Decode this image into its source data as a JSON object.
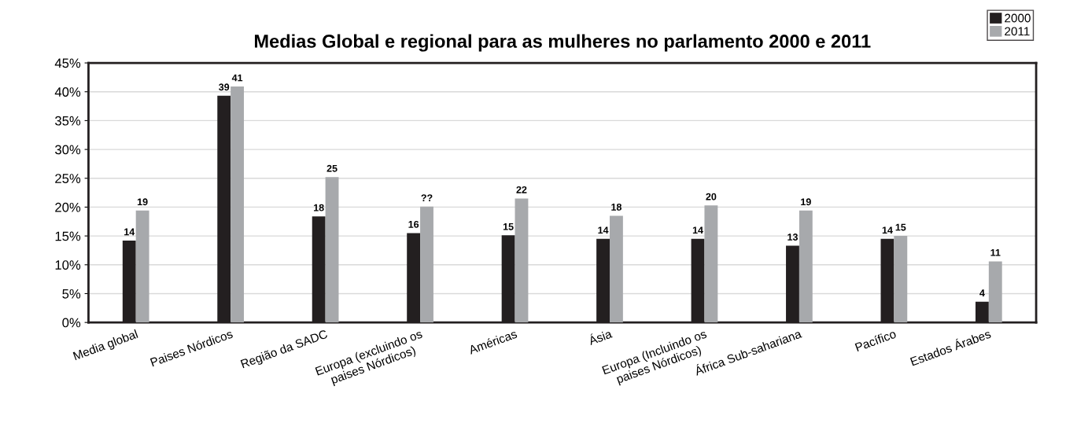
{
  "chart_data": {
    "type": "bar",
    "title": "Medias Global e regional para as mulheres no parlamento 2000 e 2011",
    "categories": [
      "Media global",
      "Paises Nórdicos",
      "Região da SADC",
      "Europa (excluindo os\npaises Nórdicos)",
      "Américas",
      "Ásia",
      "Europa (Incluindo os\npaises Nórdicos)",
      "África Sub-sahariana",
      "Pacífico",
      "Estados Árabes"
    ],
    "series": [
      {
        "name": "2000",
        "color": "#231f20",
        "values": [
          14.2,
          39.3,
          18.4,
          15.5,
          15.1,
          14.5,
          14.5,
          13.3,
          14.5,
          3.6
        ],
        "value_labels": [
          "14",
          "39",
          "18",
          "16",
          "15",
          "14",
          "14",
          "13",
          "14",
          "4"
        ]
      },
      {
        "name": "2011",
        "color": "#a7a9ac",
        "values": [
          19.4,
          40.9,
          25.2,
          20.1,
          21.5,
          18.5,
          20.3,
          19.4,
          15.0,
          10.6
        ],
        "value_labels": [
          "19",
          "41",
          "25",
          "??",
          "22",
          "18",
          "20",
          "19",
          "15",
          "11"
        ]
      }
    ],
    "ylim": [
      0,
      45
    ],
    "yticks": [
      {
        "value": 0,
        "label": "0%"
      },
      {
        "value": 5,
        "label": "5%"
      },
      {
        "value": 10,
        "label": "10%"
      },
      {
        "value": 15,
        "label": "15%"
      },
      {
        "value": 20,
        "label": "20%"
      },
      {
        "value": 25,
        "label": "25%"
      },
      {
        "value": 30,
        "label": "30%"
      },
      {
        "value": 35,
        "label": "35%"
      },
      {
        "value": 40,
        "label": "40%"
      },
      {
        "value": 45,
        "label": "45%"
      }
    ],
    "grid": "y",
    "legend": "top right"
  }
}
